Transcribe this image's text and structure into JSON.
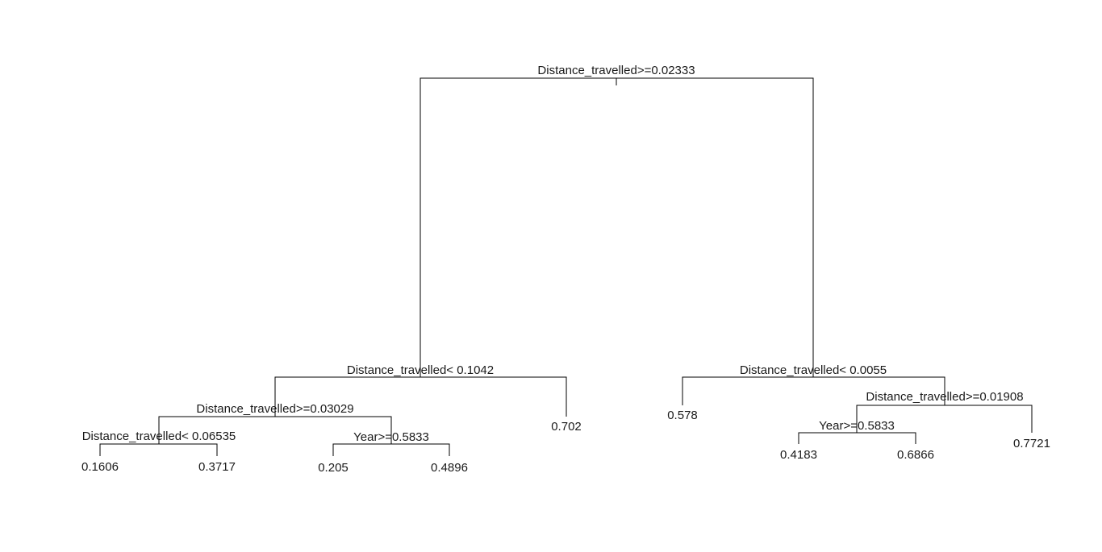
{
  "tree": {
    "splits": [
      {
        "id": "root",
        "label": "Distance_travelled>=0.02333"
      },
      {
        "id": "left",
        "label": "Distance_travelled< 0.1042"
      },
      {
        "id": "left-left",
        "label": "Distance_travelled>=0.03029"
      },
      {
        "id": "left-left-left",
        "label": "Distance_travelled< 0.06535"
      },
      {
        "id": "left-left-right",
        "label": "Year>=0.5833"
      },
      {
        "id": "right",
        "label": "Distance_travelled< 0.0055"
      },
      {
        "id": "right-right",
        "label": "Distance_travelled>=0.01908"
      },
      {
        "id": "right-right-left",
        "label": "Year>=0.5833"
      }
    ],
    "leaves": [
      {
        "id": "leaf-1",
        "value": "0.1606"
      },
      {
        "id": "leaf-2",
        "value": "0.3717"
      },
      {
        "id": "leaf-3",
        "value": "0.205"
      },
      {
        "id": "leaf-4",
        "value": "0.4896"
      },
      {
        "id": "leaf-5",
        "value": "0.702"
      },
      {
        "id": "leaf-6",
        "value": "0.578"
      },
      {
        "id": "leaf-7",
        "value": "0.4183"
      },
      {
        "id": "leaf-8",
        "value": "0.6866"
      },
      {
        "id": "leaf-9",
        "value": "0.7721"
      }
    ]
  }
}
